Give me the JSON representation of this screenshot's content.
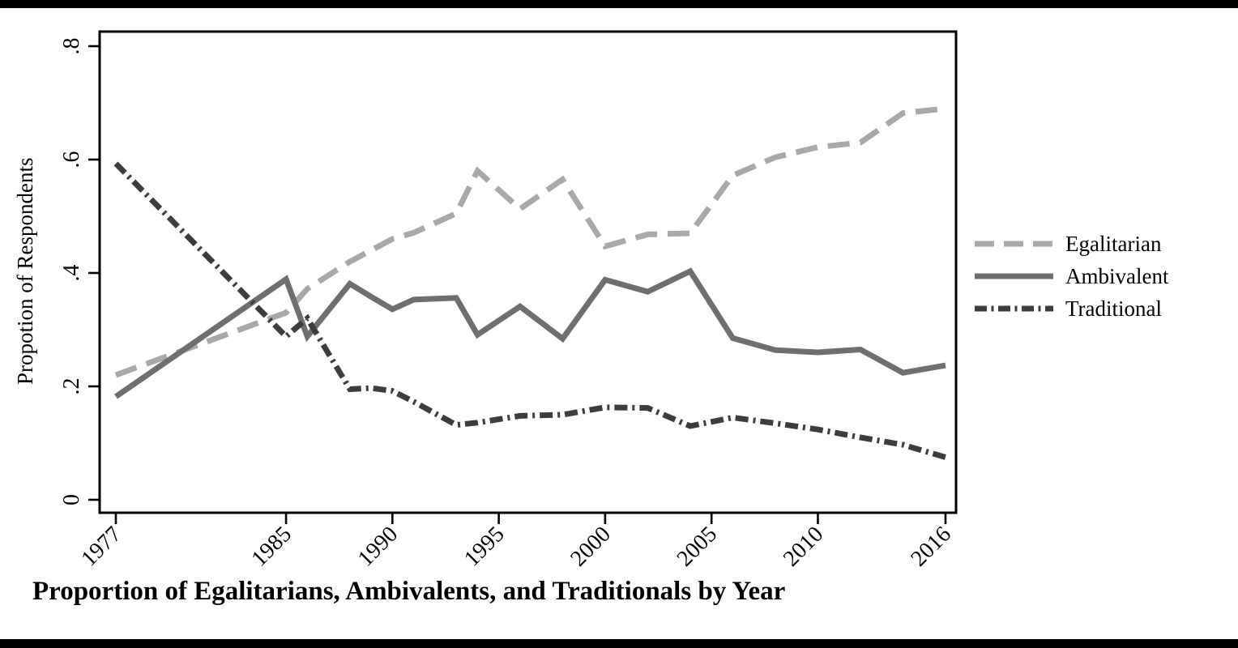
{
  "page": {
    "background": "#ffffff",
    "top_bar_color": "#000000",
    "bottom_bar_color": "#000000"
  },
  "chart_data": {
    "type": "line",
    "title": "Proportion of Egalitarians, Ambivalents, and Traditionals by Year",
    "xlabel": "",
    "ylabel": "Propotion of Respondents",
    "xlim": [
      1977,
      2016
    ],
    "ylim": [
      0,
      0.8
    ],
    "grid": false,
    "legend_position": "right-outside",
    "x_ticks": [
      1977,
      1985,
      1990,
      1995,
      2000,
      2005,
      2010,
      2016
    ],
    "x_tick_labels": [
      "1977",
      "1985",
      "1990",
      "1995",
      "2000",
      "2005",
      "2010",
      "2016"
    ],
    "y_ticks": [
      0,
      0.2,
      0.4,
      0.6,
      0.8
    ],
    "y_tick_labels": [
      "0",
      ".2",
      ".4",
      ".6",
      ".8"
    ],
    "x": [
      1977,
      1985,
      1986,
      1988,
      1989,
      1990,
      1991,
      1993,
      1994,
      1996,
      1998,
      2000,
      2002,
      2004,
      2006,
      2008,
      2010,
      2012,
      2014,
      2016
    ],
    "series": [
      {
        "name": "Egalitarian",
        "color": "#a9a9a9",
        "line_style": "dashed",
        "values": [
          0.22,
          0.33,
          0.372,
          0.42,
          0.44,
          0.46,
          0.471,
          0.505,
          0.58,
          0.513,
          0.565,
          0.447,
          0.468,
          0.47,
          0.572,
          0.604,
          0.622,
          0.63,
          0.682,
          0.69
        ]
      },
      {
        "name": "Ambivalent",
        "color": "#6f6f6f",
        "line_style": "solid",
        "values": [
          0.182,
          0.389,
          0.288,
          0.381,
          0.358,
          0.336,
          0.353,
          0.356,
          0.291,
          0.341,
          0.284,
          0.388,
          0.367,
          0.403,
          0.285,
          0.264,
          0.26,
          0.265,
          0.224,
          0.237
        ]
      },
      {
        "name": "Traditional",
        "color": "#3d3d3d",
        "line_style": "dash-dot",
        "values": [
          0.593,
          0.288,
          0.32,
          0.195,
          0.197,
          0.192,
          0.173,
          0.132,
          0.136,
          0.148,
          0.15,
          0.163,
          0.162,
          0.13,
          0.145,
          0.135,
          0.124,
          0.11,
          0.097,
          0.075
        ]
      }
    ]
  }
}
